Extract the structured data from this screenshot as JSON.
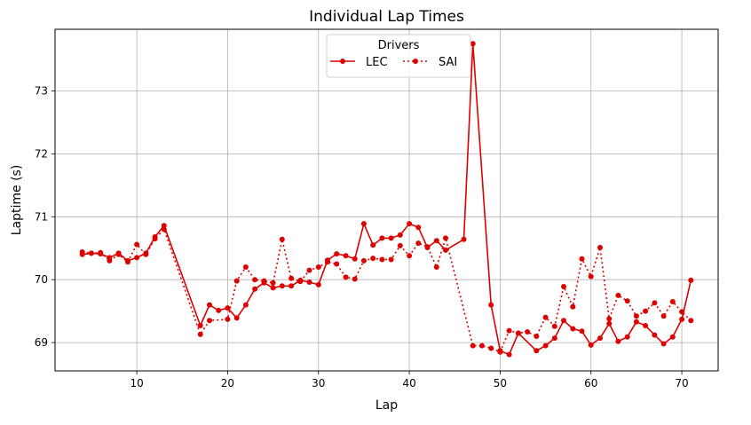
{
  "chart_data": {
    "type": "line",
    "title": "Individual Lap Times",
    "xlabel": "Lap",
    "ylabel": "Laptime (s)",
    "xlim": [
      1,
      74
    ],
    "ylim": [
      68.55,
      73.98
    ],
    "xticks": [
      10,
      20,
      30,
      40,
      50,
      60,
      70
    ],
    "yticks": [
      69,
      70,
      71,
      72,
      73
    ],
    "grid": true,
    "legend": {
      "title": "Drivers",
      "placement": "top-center"
    },
    "series": [
      {
        "name": "LEC",
        "color": "#dc0000",
        "linestyle": "solid",
        "x": [
          4,
          5,
          6,
          7,
          8,
          9,
          10,
          11,
          12,
          13,
          17,
          18,
          19,
          20,
          21,
          22,
          23,
          24,
          25,
          26,
          27,
          28,
          29,
          30,
          31,
          32,
          33,
          34,
          35,
          36,
          37,
          38,
          39,
          40,
          41,
          42,
          43,
          44,
          46,
          47,
          49,
          50,
          51,
          52,
          54,
          55,
          56,
          57,
          58,
          59,
          60,
          61,
          62,
          63,
          64,
          65,
          66,
          67,
          68,
          69,
          70,
          71
        ],
        "y": [
          70.4,
          70.42,
          70.41,
          70.35,
          70.42,
          70.3,
          70.35,
          70.42,
          70.68,
          70.86,
          69.27,
          69.6,
          69.51,
          69.55,
          69.39,
          69.6,
          69.85,
          69.95,
          69.87,
          69.9,
          69.9,
          69.99,
          69.96,
          69.92,
          70.31,
          70.41,
          70.38,
          70.33,
          70.89,
          70.55,
          70.66,
          70.66,
          70.71,
          70.89,
          70.83,
          70.51,
          70.62,
          70.47,
          70.64,
          73.75,
          69.6,
          68.87,
          68.81,
          69.15,
          68.87,
          68.95,
          69.07,
          69.35,
          69.22,
          69.18,
          68.96,
          69.07,
          69.3,
          69.02,
          69.09,
          69.33,
          69.27,
          69.12,
          68.98,
          69.09,
          69.37,
          69.99
        ]
      },
      {
        "name": "SAI",
        "color": "#dc0000",
        "linestyle": "dotted",
        "x": [
          4,
          5,
          6,
          7,
          8,
          9,
          10,
          11,
          12,
          13,
          17,
          18,
          20,
          21,
          22,
          23,
          24,
          25,
          26,
          27,
          28,
          29,
          30,
          31,
          32,
          33,
          34,
          35,
          36,
          37,
          38,
          39,
          40,
          41,
          42,
          43,
          44,
          47,
          48,
          49,
          50,
          51,
          52,
          53,
          54,
          55,
          56,
          57,
          58,
          59,
          60,
          61,
          62,
          63,
          64,
          65,
          66,
          67,
          68,
          69,
          70,
          71
        ],
        "y": [
          70.44,
          70.42,
          70.43,
          70.3,
          70.4,
          70.28,
          70.56,
          70.4,
          70.65,
          70.8,
          69.13,
          69.35,
          69.37,
          69.98,
          70.2,
          70.0,
          69.98,
          69.95,
          70.64,
          70.02,
          69.97,
          70.15,
          70.2,
          70.28,
          70.25,
          70.04,
          70.01,
          70.3,
          70.34,
          70.32,
          70.32,
          70.54,
          70.38,
          70.58,
          70.52,
          70.2,
          70.66,
          68.95,
          68.95,
          68.91,
          68.85,
          69.19,
          69.15,
          69.17,
          69.1,
          69.4,
          69.26,
          69.89,
          69.57,
          70.33,
          70.05,
          70.51,
          69.38,
          69.75,
          69.66,
          69.42,
          69.5,
          69.63,
          69.42,
          69.65,
          69.49,
          69.35
        ]
      }
    ]
  }
}
